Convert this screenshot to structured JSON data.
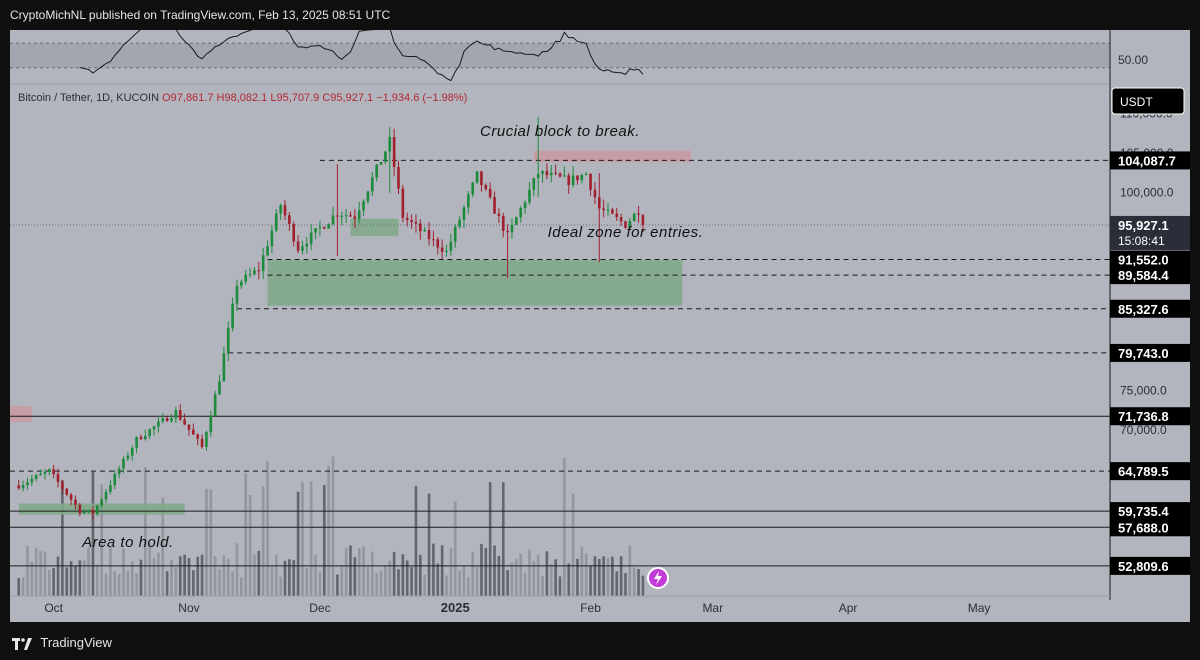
{
  "header": {
    "publish_text": "CryptoMichNL published on TradingView.com, Feb 13, 2025 08:51 UTC"
  },
  "footer": {
    "brand": "TradingView"
  },
  "symbol": {
    "name": "Bitcoin / Tether, 1D, KUCOIN",
    "open": "O97,861.7",
    "high": "H98,082.1",
    "low": "L95,707.9",
    "close": "C95,927.1",
    "change": "−1,934.6 (−1.98%)"
  },
  "colors": {
    "up": "#1e8a3c",
    "down": "#a0202e",
    "background": "#b2b5be",
    "zone_green": "#7fa88a",
    "zone_red": "#c99aa2",
    "label_bg": "#000000",
    "label_text": "#ffffff"
  },
  "chart_data": {
    "type": "candlestick",
    "price_axis": {
      "unit": "USDT",
      "ticks": [
        "110,000.0",
        "105,000.0",
        "100,000.0",
        "75,000.0",
        "70,000.0"
      ],
      "ylim": [
        49000,
        113500
      ]
    },
    "time_axis": {
      "ticks": [
        {
          "label": "Oct",
          "date": "2024-10-01"
        },
        {
          "label": "Nov",
          "date": "2024-11-01"
        },
        {
          "label": "Dec",
          "date": "2024-12-01"
        },
        {
          "label": "2025",
          "date": "2025-01-01"
        },
        {
          "label": "Feb",
          "date": "2025-02-01"
        },
        {
          "label": "Mar",
          "date": "2025-03-01"
        },
        {
          "label": "Apr",
          "date": "2025-04-01"
        },
        {
          "label": "May",
          "date": "2025-05-01"
        }
      ],
      "xlim": [
        "2024-09-21",
        "2025-05-31"
      ]
    },
    "oscillator": {
      "value_label": "50.00",
      "band": [
        30,
        70
      ],
      "ylim": [
        10,
        85
      ]
    },
    "current_price": {
      "value": 95927.1,
      "label": "95,927.1",
      "countdown": "15:08:41"
    },
    "levels": [
      {
        "value": 104087.7,
        "label": "104,087.7",
        "style": "dashed",
        "start": "2024-12-01"
      },
      {
        "value": 91552.0,
        "label": "91,552.0",
        "style": "dashed",
        "start": "2024-11-19"
      },
      {
        "value": 89584.4,
        "label": "89,584.4",
        "style": "dashed",
        "start": "2024-11-19"
      },
      {
        "value": 85327.6,
        "label": "85,327.6",
        "style": "dashed",
        "start": "2024-11-12"
      },
      {
        "value": 79743.0,
        "label": "79,743.0",
        "style": "dashed",
        "start": "2024-11-10"
      },
      {
        "value": 71736.8,
        "label": "71,736.8",
        "style": "solid",
        "start": "2024-09-21"
      },
      {
        "value": 64789.5,
        "label": "64,789.5",
        "style": "dashed",
        "start": "2024-09-21"
      },
      {
        "value": 59735.4,
        "label": "59,735.4",
        "style": "solid",
        "start": "2024-09-21"
      },
      {
        "value": 57688.0,
        "label": "57,688.0",
        "style": "solid",
        "start": "2024-09-21"
      },
      {
        "value": 52809.6,
        "label": "52,809.6",
        "style": "solid",
        "start": "2024-09-21"
      }
    ],
    "zones": [
      {
        "kind": "green",
        "from": "2024-11-19",
        "to": "2025-02-22",
        "low": 85700,
        "high": 91500
      },
      {
        "kind": "green",
        "from": "2024-12-08",
        "to": "2024-12-19",
        "low": 94500,
        "high": 96700
      },
      {
        "kind": "green",
        "from": "2024-09-23",
        "to": "2024-10-31",
        "low": 59300,
        "high": 60700
      },
      {
        "kind": "red",
        "from": "2025-01-19",
        "to": "2025-02-24",
        "low": 103900,
        "high": 105300
      },
      {
        "kind": "red",
        "from": "2024-09-21",
        "to": "2024-09-26",
        "low": 71000,
        "high": 73000
      }
    ],
    "annotations": [
      {
        "text": "Crucial block to break.",
        "date": "2025-01-25",
        "price": 107200
      },
      {
        "text": "Ideal zone for entries.",
        "date": "2025-02-09",
        "price": 94400
      },
      {
        "text": "Area to hold.",
        "date": "2024-10-18",
        "price": 55200
      }
    ],
    "anchors": [
      {
        "date": "2024-09-23",
        "price": 63000
      },
      {
        "date": "2024-09-30",
        "price": 64800
      },
      {
        "date": "2024-10-07",
        "price": 59800
      },
      {
        "date": "2024-10-10",
        "price": 59500
      },
      {
        "date": "2024-10-20",
        "price": 68800
      },
      {
        "date": "2024-10-29",
        "price": 72300
      },
      {
        "date": "2024-11-04",
        "price": 67800
      },
      {
        "date": "2024-11-08",
        "price": 76500
      },
      {
        "date": "2024-11-12",
        "price": 88500
      },
      {
        "date": "2024-11-17",
        "price": 90300
      },
      {
        "date": "2024-11-22",
        "price": 98500
      },
      {
        "date": "2024-11-26",
        "price": 93000
      },
      {
        "date": "2024-12-05",
        "price": 97500
      },
      {
        "date": "2024-12-09",
        "price": 97000
      },
      {
        "date": "2024-12-17",
        "price": 106500
      },
      {
        "date": "2024-12-20",
        "price": 97000
      },
      {
        "date": "2024-12-30",
        "price": 92500
      },
      {
        "date": "2025-01-06",
        "price": 102200
      },
      {
        "date": "2025-01-13",
        "price": 94500
      },
      {
        "date": "2025-01-20",
        "price": 102500
      },
      {
        "date": "2025-01-27",
        "price": 101500
      },
      {
        "date": "2025-01-31",
        "price": 102400
      },
      {
        "date": "2025-02-03",
        "price": 98000
      },
      {
        "date": "2025-02-09",
        "price": 96000
      },
      {
        "date": "2025-02-12",
        "price": 97800
      },
      {
        "date": "2025-02-13",
        "price": 95927
      }
    ],
    "wicks": [
      {
        "date": "2024-12-05",
        "high": 103600,
        "low": 92000
      },
      {
        "date": "2024-12-17",
        "high": 108300,
        "low": 100000
      },
      {
        "date": "2025-01-20",
        "high": 109600,
        "low": 99500
      },
      {
        "date": "2025-01-13",
        "high": 96000,
        "low": 89200
      },
      {
        "date": "2025-02-03",
        "high": 102500,
        "low": 91200
      }
    ]
  }
}
